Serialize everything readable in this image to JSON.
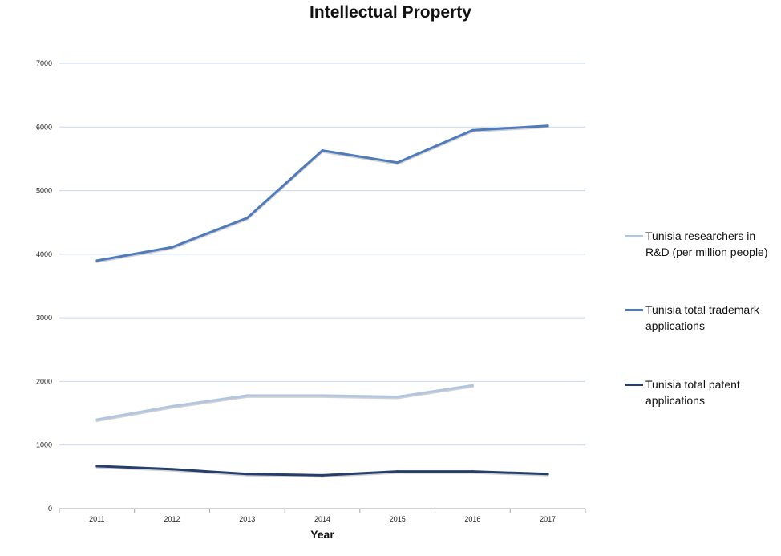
{
  "chart_data": {
    "type": "line",
    "title": "Intellectual Property",
    "xlabel": "Year",
    "ylabel": "",
    "categories": [
      "2011",
      "2012",
      "2013",
      "2014",
      "2015",
      "2016",
      "2017"
    ],
    "ylim": [
      0,
      7000
    ],
    "yticks": [
      0,
      1000,
      2000,
      3000,
      4000,
      5000,
      6000,
      7000
    ],
    "grid": true,
    "legend_position": "right",
    "series": [
      {
        "name": "Tunisia researchers in R&D (per million people)",
        "color": "#b3c6e0",
        "values": [
          1400,
          1610,
          1780,
          1780,
          1760,
          1940,
          null
        ]
      },
      {
        "name": "Tunisia total trademark applications",
        "color": "#4f7bbd",
        "values": [
          3900,
          4110,
          4570,
          5630,
          5440,
          5950,
          6020
        ]
      },
      {
        "name": "Tunisia total patent applications",
        "color": "#243f6b",
        "values": [
          670,
          620,
          545,
          525,
          585,
          585,
          545
        ]
      }
    ]
  }
}
